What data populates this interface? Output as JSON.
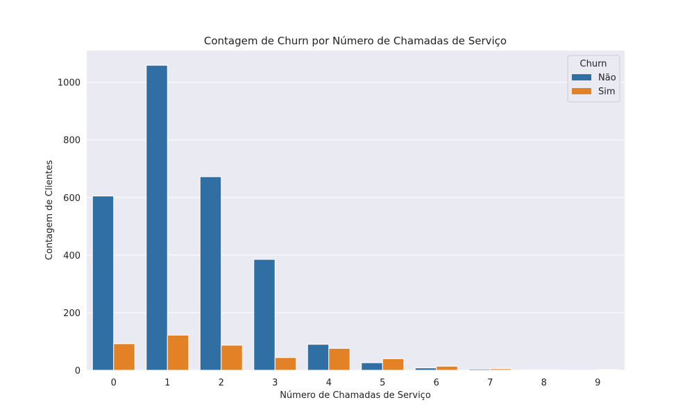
{
  "chart_data": {
    "type": "bar",
    "title": "Contagem de Churn por Número de Chamadas de Serviço",
    "xlabel": "Número de Chamadas de Serviço",
    "ylabel": "Contagem de Clientes",
    "categories": [
      "0",
      "1",
      "2",
      "3",
      "4",
      "5",
      "6",
      "7",
      "8",
      "9"
    ],
    "ylim": [
      0,
      1110
    ],
    "yticks": [
      0,
      200,
      400,
      600,
      800,
      1000
    ],
    "grid": true,
    "legend": {
      "title": "Churn",
      "placement": "top-right"
    },
    "series": [
      {
        "name": "Não",
        "color": "#2f6fa3",
        "values": [
          605,
          1059,
          672,
          385,
          90,
          26,
          8,
          4,
          1,
          0
        ]
      },
      {
        "name": "Sim",
        "color": "#e38126",
        "values": [
          92,
          122,
          87,
          44,
          76,
          40,
          14,
          5,
          1,
          2
        ]
      }
    ]
  }
}
